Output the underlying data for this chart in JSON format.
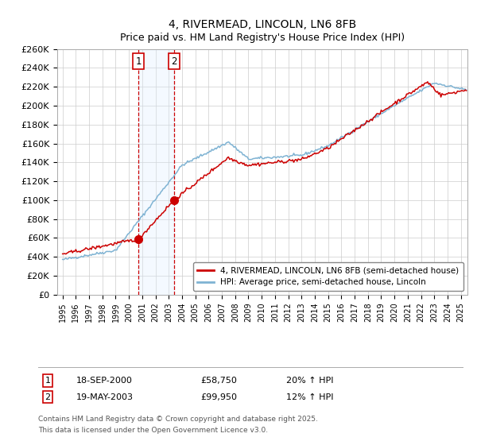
{
  "title": "4, RIVERMEAD, LINCOLN, LN6 8FB",
  "subtitle": "Price paid vs. HM Land Registry's House Price Index (HPI)",
  "ylim": [
    0,
    260000
  ],
  "yticks": [
    0,
    20000,
    40000,
    60000,
    80000,
    100000,
    120000,
    140000,
    160000,
    180000,
    200000,
    220000,
    240000,
    260000
  ],
  "ytick_labels": [
    "£0",
    "£20K",
    "£40K",
    "£60K",
    "£80K",
    "£100K",
    "£120K",
    "£140K",
    "£160K",
    "£180K",
    "£200K",
    "£220K",
    "£240K",
    "£260K"
  ],
  "purchase1_date": 2000.72,
  "purchase1_price": 58750,
  "purchase1_label": "18-SEP-2000",
  "purchase1_pct": "20% ↑ HPI",
  "purchase2_date": 2003.38,
  "purchase2_price": 99950,
  "purchase2_label": "19-MAY-2003",
  "purchase2_pct": "12% ↑ HPI",
  "line_color_red": "#cc0000",
  "line_color_blue": "#7fb3d3",
  "shade_color": "#ddeeff",
  "legend_label_red": "4, RIVERMEAD, LINCOLN, LN6 8FB (semi-detached house)",
  "legend_label_blue": "HPI: Average price, semi-detached house, Lincoln",
  "footnote1": "Contains HM Land Registry data © Crown copyright and database right 2025.",
  "footnote2": "This data is licensed under the Open Government Licence v3.0.",
  "background_color": "#ffffff",
  "grid_color": "#cccccc",
  "title_fontsize": 10,
  "subtitle_fontsize": 9
}
